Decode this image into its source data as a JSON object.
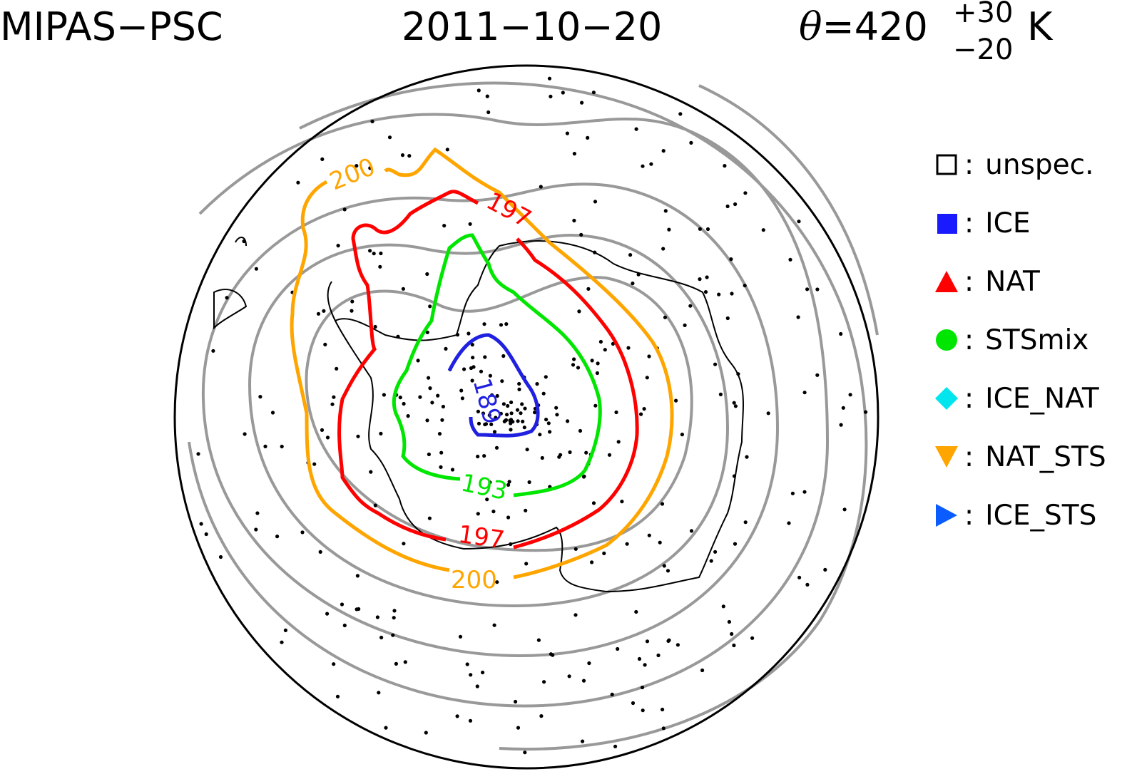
{
  "header": {
    "left": "MIPAS−PSC",
    "date": "2011−10−20",
    "theta_symbol": "θ",
    "theta_value": "=420",
    "theta_plus": "+30",
    "theta_minus": "−20",
    "theta_unit": "K"
  },
  "legend": [
    {
      "symbol": "open-square",
      "label": "unspec.",
      "color": "#000000"
    },
    {
      "symbol": "filled-square",
      "label": "ICE",
      "color": "#1a1aff"
    },
    {
      "symbol": "triangle-up",
      "label": "NAT",
      "color": "#ff0000"
    },
    {
      "symbol": "circle",
      "label": "STSmix",
      "color": "#00e600"
    },
    {
      "symbol": "diamond",
      "label": "ICE_NAT",
      "color": "#00e5ee"
    },
    {
      "symbol": "triangle-down",
      "label": "NAT_STS",
      "color": "#ffa500"
    },
    {
      "symbol": "triangle-right",
      "label": "ICE_STS",
      "color": "#0a5cff"
    }
  ],
  "contours": {
    "blue_label": "189",
    "green_label": "193",
    "red_label_a": "197",
    "red_label_b": "197",
    "orange_label_a": "200",
    "orange_label_b": "200",
    "colors": {
      "c189": "#2020e0",
      "c193": "#00e600",
      "c197": "#ff0000",
      "c200": "#ffa500",
      "other": "#999999"
    }
  }
}
